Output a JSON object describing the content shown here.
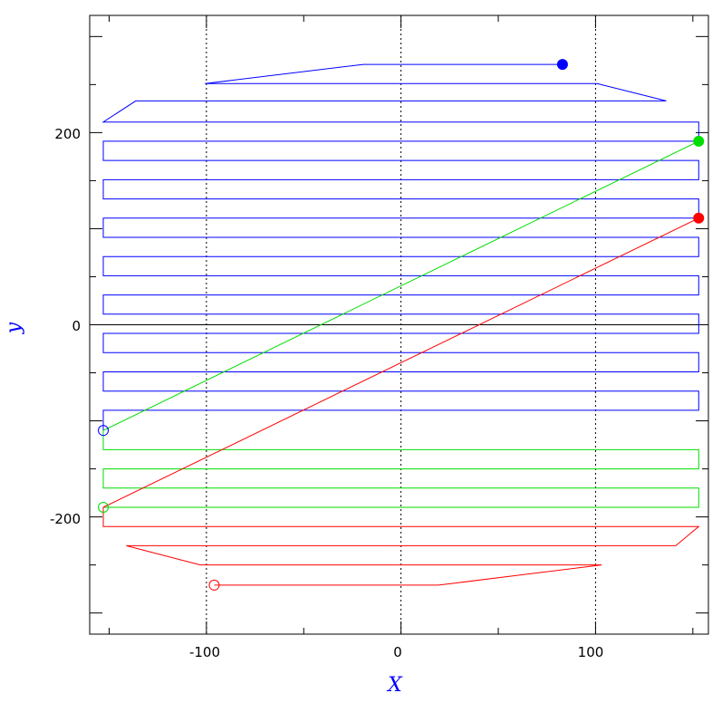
{
  "chart_data": {
    "type": "line",
    "xlabel": "X",
    "ylabel": "y",
    "xlim": [
      -160,
      158
    ],
    "ylim": [
      -322,
      322
    ],
    "x_ticks": [
      -100,
      0,
      100
    ],
    "y_ticks": [
      -200,
      0,
      200
    ],
    "x_tick_labels": [
      "-100",
      "0",
      "100"
    ],
    "y_tick_labels": [
      "-200",
      "0",
      "200"
    ],
    "vertical_dashed_lines_x": [
      -100,
      0,
      100
    ],
    "zero_line_y": 0,
    "series": [
      {
        "color": "#0000ff",
        "start_marker": "filled-circle",
        "end_marker": "open-circle",
        "start": [
          83,
          271
        ],
        "end": [
          -153,
          -110
        ],
        "rows_y": [
          271,
          251,
          233,
          211,
          191,
          171,
          151,
          131,
          111,
          91,
          71,
          51,
          31,
          11,
          -9,
          -29,
          -49,
          -69,
          -89,
          -109
        ]
      },
      {
        "color": "#00dd00",
        "start_marker": "filled-circle",
        "end_marker": "open-circle",
        "start": [
          153,
          191
        ],
        "end": [
          -153,
          -190
        ],
        "rows_y": [
          -110,
          -130,
          -150,
          -170,
          -190
        ]
      },
      {
        "color": "#ff0000",
        "start_marker": "filled-circle",
        "end_marker": "open-circle",
        "start": [
          153,
          111
        ],
        "end": [
          -96,
          -271
        ],
        "rows_y": [
          -190,
          -210,
          -230,
          -250,
          -271
        ]
      }
    ]
  }
}
